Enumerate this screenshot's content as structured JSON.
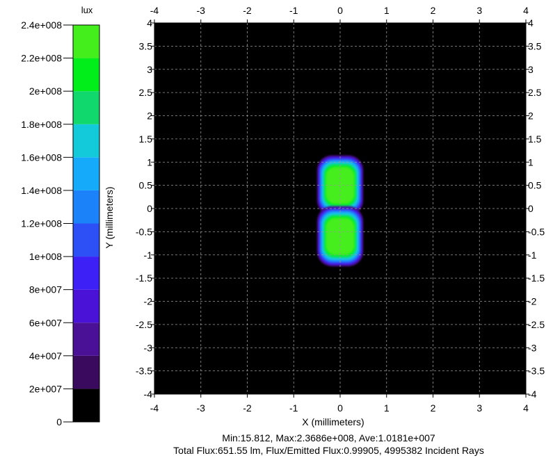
{
  "chart_data": {
    "type": "heatmap",
    "colorbar": {
      "unit_label": "lux",
      "ticks": [
        {
          "value": 0,
          "label": "0"
        },
        {
          "value": 20000000,
          "label": "2e+007"
        },
        {
          "value": 40000000,
          "label": "4e+007"
        },
        {
          "value": 60000000,
          "label": "6e+007"
        },
        {
          "value": 80000000,
          "label": "8e+007"
        },
        {
          "value": 100000000,
          "label": "1e+008"
        },
        {
          "value": 120000000,
          "label": "1.2e+008"
        },
        {
          "value": 140000000,
          "label": "1.4e+008"
        },
        {
          "value": 160000000,
          "label": "1.6e+008"
        },
        {
          "value": 180000000,
          "label": "1.8e+008"
        },
        {
          "value": 200000000,
          "label": "2e+008"
        },
        {
          "value": 220000000,
          "label": "2.2e+008"
        },
        {
          "value": 240000000,
          "label": "2.4e+008"
        }
      ],
      "range": [
        0,
        240000000
      ],
      "band_step": 20000000,
      "colors": [
        "#000000",
        "#3a0a5e",
        "#4a1096",
        "#4a12d6",
        "#3c20f6",
        "#2c50f6",
        "#1c82fa",
        "#16aafa",
        "#12cada",
        "#10d86c",
        "#02ee1a",
        "#44ee1c",
        "#88f41e"
      ]
    },
    "xlabel": "X (millimeters)",
    "ylabel": "Y (millimeters)",
    "xlim": [
      -4,
      4
    ],
    "ylim": [
      -4,
      4
    ],
    "x_ticks": [
      -4,
      -3,
      -2,
      -1,
      0,
      1,
      2,
      3,
      4
    ],
    "y_ticks": [
      -4,
      -3.5,
      -3,
      -2.5,
      -2,
      -1.5,
      -1,
      -0.5,
      0,
      0.5,
      1,
      1.5,
      2,
      2.5,
      3,
      3.5,
      4
    ],
    "grid": true,
    "background_color": "#000000",
    "illuminated_regions": [
      {
        "x_center": 0,
        "y_center": 0.5,
        "x_half_width": 0.5,
        "y_half_height": 0.65,
        "peak_lux": 236860000
      },
      {
        "x_center": 0,
        "y_center": -0.6,
        "x_half_width": 0.5,
        "y_half_height": 0.65,
        "peak_lux": 236860000
      }
    ],
    "stats": {
      "line1": "Min:15.812, Max:2.3686e+008, Ave:1.0181e+007",
      "line2": "Total Flux:651.55 lm, Flux/Emitted Flux:0.99905, 4995382 Incident Rays"
    }
  }
}
